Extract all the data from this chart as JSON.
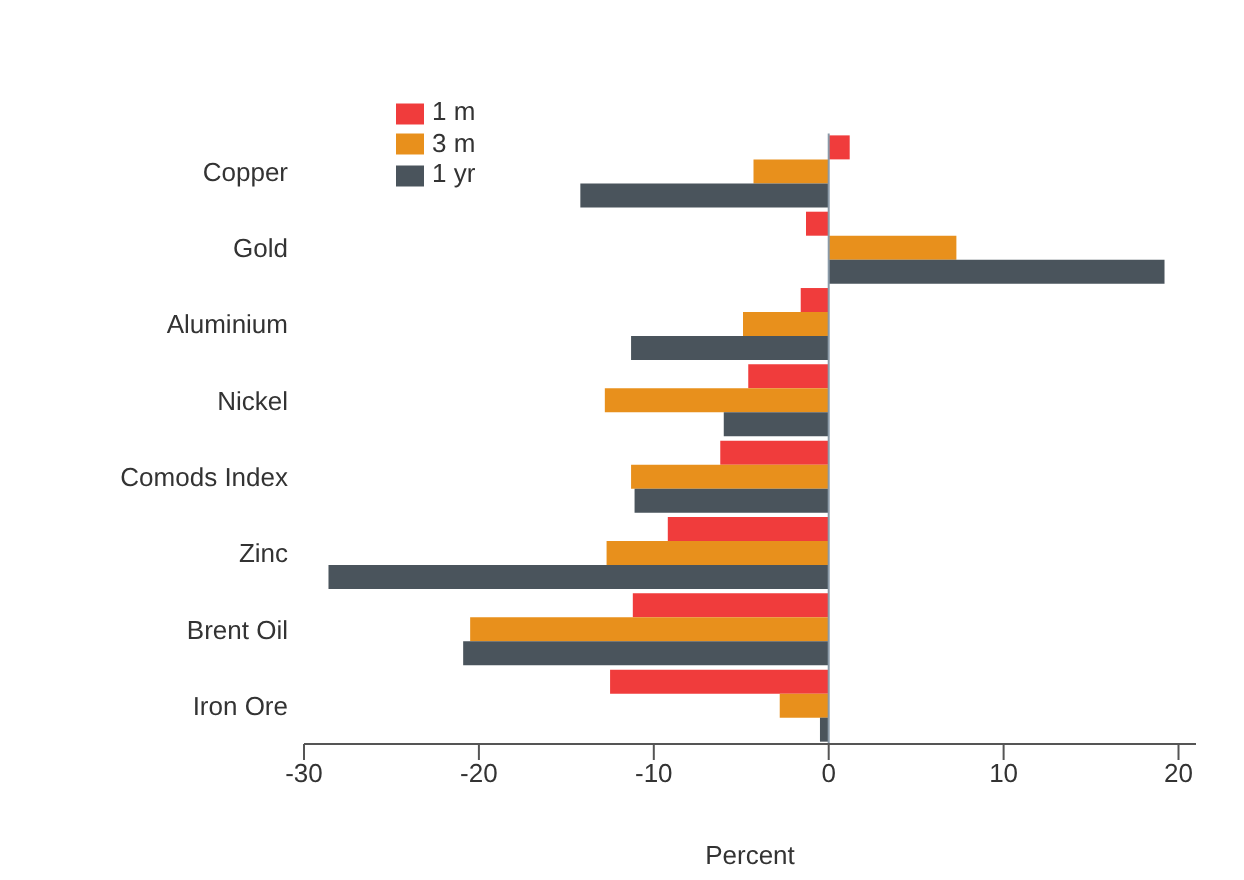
{
  "chart_data": {
    "type": "bar",
    "orientation": "horizontal",
    "xlabel": "Percent",
    "categories": [
      "Copper",
      "Gold",
      "Aluminium",
      "Nickel",
      "Comods Index",
      "Zinc",
      "Brent Oil",
      "Iron Ore"
    ],
    "series": [
      {
        "name": "1 m",
        "color": "#f03c3c",
        "values": [
          1.2,
          -1.3,
          -1.6,
          -4.6,
          -6.2,
          -9.2,
          -11.2,
          -12.5
        ]
      },
      {
        "name": "3 m",
        "color": "#e8901c",
        "values": [
          -4.3,
          7.3,
          -4.9,
          -12.8,
          -11.3,
          -12.7,
          -20.5,
          -2.8
        ]
      },
      {
        "name": "1 yr",
        "color": "#4a545c",
        "values": [
          -14.2,
          19.2,
          -11.3,
          -6.0,
          -11.1,
          -28.6,
          -20.9,
          -0.5
        ]
      }
    ],
    "xlim": [
      -30,
      21
    ],
    "xticks": [
      -30,
      -20,
      -10,
      0,
      10,
      20
    ],
    "ref_lines": [
      {
        "axis": "x",
        "value": 0,
        "color": "#8a9aa8"
      }
    ],
    "grid": false,
    "legend": "top left"
  }
}
